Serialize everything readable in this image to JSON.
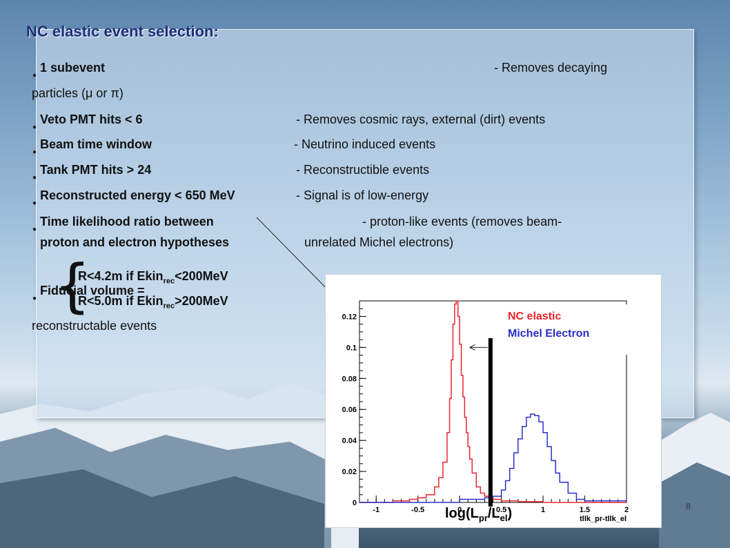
{
  "title": "NC elastic event selection:",
  "cuts": [
    {
      "cut": "1 subevent",
      "desc": "- Removes decaying",
      "desc2": "particles (μ or π)"
    },
    {
      "cut": "Veto PMT hits < 6",
      "desc": "- Removes cosmic rays, external (dirt) events"
    },
    {
      "cut": "Beam time window",
      "desc": "- Neutrino induced events"
    },
    {
      "cut": "Tank PMT hits > 24",
      "desc": "- Reconstructible events"
    },
    {
      "cut": "Reconstructed energy < 650 MeV",
      "desc": "- Signal is of low-energy"
    },
    {
      "cut": "Time likelihood ratio between",
      "cut2": "proton and electron hypotheses",
      "desc": "- proton-like events  (removes beam-",
      "desc2": "unrelated Michel electrons)"
    },
    {
      "cut": "Fiducial volume =",
      "desc2": "reconstructable events"
    }
  ],
  "fiducial": {
    "r1_a": "R<4.2m if  Ekin",
    "r1_sub": "rec",
    "r1_b": "<200MeV",
    "r2_a": "R<5.0m if  Ekin",
    "r2_sub": "rec",
    "r2_b": ">200MeV"
  },
  "x_caption": {
    "a": "log(L",
    "s1": "pr",
    "b": "/L",
    "s2": "el",
    "c": ")"
  },
  "page_number": "8",
  "colors": {
    "nc": "#e8242a",
    "michel": "#2a2ec8",
    "title": "#1d2f7a"
  },
  "chart_data": {
    "type": "line",
    "xlabel": "tllk_pr-tllk_el",
    "xlim": [
      -1.2,
      2.0
    ],
    "ylim": [
      0,
      0.13
    ],
    "xticks": [
      "-1",
      "-0.5",
      "0",
      "0.5",
      "1",
      "1.5",
      "2"
    ],
    "yticks": [
      "0",
      "0.02",
      "0.04",
      "0.06",
      "0.08",
      "0.1",
      "0.12"
    ],
    "cut_value": 0.37,
    "legend_position": "top-right",
    "series": [
      {
        "name": "NC elastic",
        "color": "#e8242a",
        "x": [
          -1.2,
          -0.8,
          -0.6,
          -0.5,
          -0.4,
          -0.3,
          -0.25,
          -0.2,
          -0.15,
          -0.12,
          -0.1,
          -0.08,
          -0.06,
          -0.04,
          -0.02,
          0.0,
          0.02,
          0.04,
          0.06,
          0.08,
          0.1,
          0.12,
          0.15,
          0.2,
          0.25,
          0.3,
          0.35,
          0.4,
          0.5,
          0.7,
          1.0,
          2.0
        ],
        "y": [
          0.0,
          0.001,
          0.002,
          0.003,
          0.005,
          0.01,
          0.016,
          0.026,
          0.045,
          0.067,
          0.092,
          0.115,
          0.128,
          0.13,
          0.12,
          0.102,
          0.082,
          0.068,
          0.055,
          0.045,
          0.036,
          0.028,
          0.019,
          0.01,
          0.006,
          0.004,
          0.003,
          0.002,
          0.001,
          0.0005,
          0.0,
          0.0
        ]
      },
      {
        "name": "Michel Electron",
        "color": "#2a2ec8",
        "x": [
          -1.2,
          0.0,
          0.3,
          0.4,
          0.5,
          0.55,
          0.6,
          0.65,
          0.7,
          0.75,
          0.8,
          0.85,
          0.9,
          0.95,
          1.0,
          1.05,
          1.1,
          1.15,
          1.2,
          1.3,
          1.4,
          1.5,
          2.0
        ],
        "y": [
          0.0,
          0.002,
          0.003,
          0.004,
          0.008,
          0.014,
          0.022,
          0.032,
          0.041,
          0.049,
          0.055,
          0.057,
          0.056,
          0.052,
          0.045,
          0.036,
          0.027,
          0.019,
          0.013,
          0.006,
          0.002,
          0.001,
          0.0
        ]
      }
    ]
  }
}
